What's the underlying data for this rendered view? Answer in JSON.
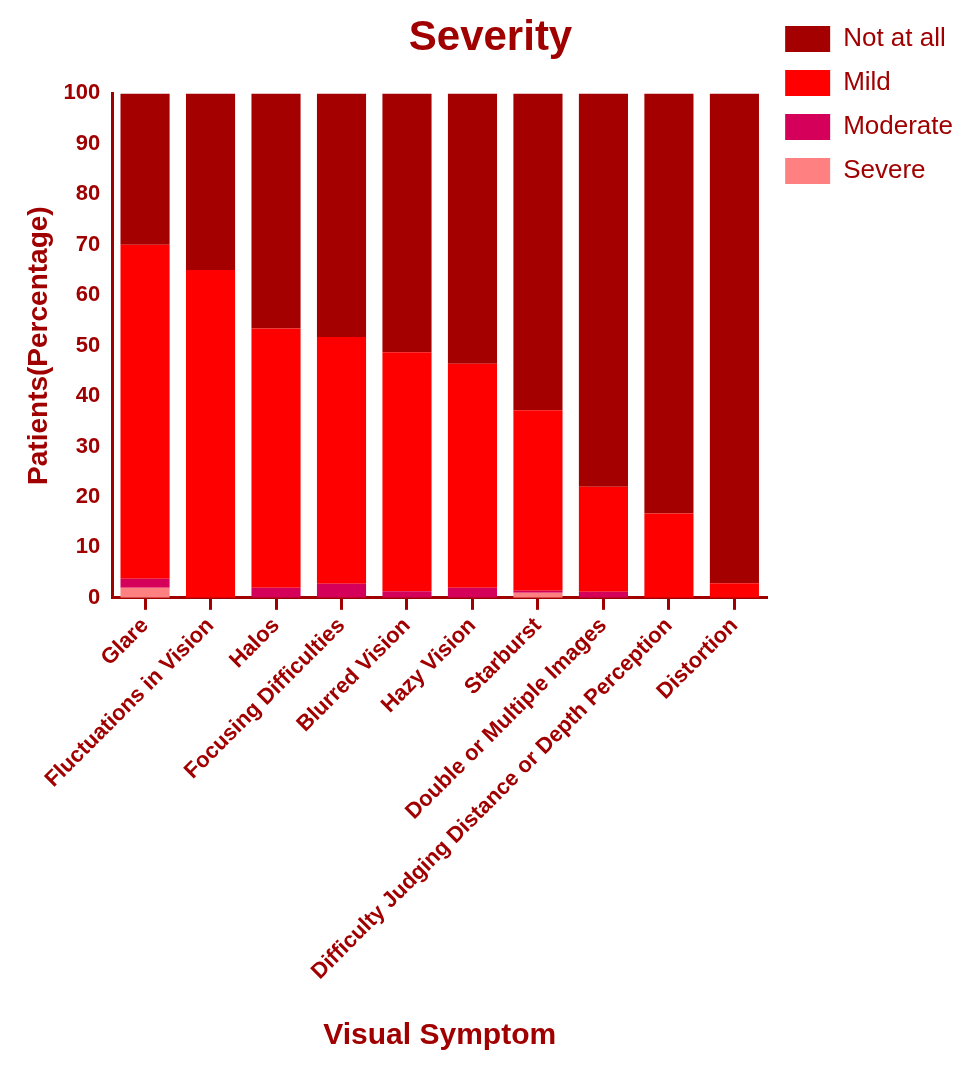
{
  "chart_data": {
    "type": "bar",
    "title": "Severity",
    "xlabel": "Visual Symptom",
    "ylabel": "Patients(Percentage)",
    "stacked": true,
    "legend": "top right",
    "grid": false,
    "categories": [
      "Glare",
      "Fluctuations in Vision",
      "Halos",
      "Focusing Difficulties",
      "Blurred Vision",
      "Hazy Vision",
      "Starburst",
      "Double or Multiple Images",
      "Difficulty Judging Distance or Depth Perception",
      "Distortion"
    ],
    "ylim": [
      0,
      100
    ],
    "yticks": [
      0,
      10,
      20,
      30,
      40,
      50,
      60,
      70,
      80,
      90,
      100
    ],
    "series": [
      {
        "name": "Severe",
        "color": "#ff8080",
        "values": [
          2,
          0,
          0,
          0,
          0,
          0,
          1,
          0,
          0,
          0
        ]
      },
      {
        "name": "Moderate",
        "color": "#d4005a",
        "values": [
          1.8,
          0,
          2,
          2.8,
          1.3,
          2,
          0.4,
          1.2,
          0,
          0
        ]
      },
      {
        "name": "Mild",
        "color": "#ff0000",
        "values": [
          66.2,
          65,
          51.4,
          48.9,
          47.4,
          44.4,
          35.8,
          20.8,
          16.7,
          2.9
        ]
      },
      {
        "name": "Not at all",
        "color": "#a50000",
        "values": [
          30,
          35,
          46.6,
          48.3,
          51.3,
          53.6,
          62.8,
          78,
          83.3,
          97.1
        ]
      }
    ]
  }
}
